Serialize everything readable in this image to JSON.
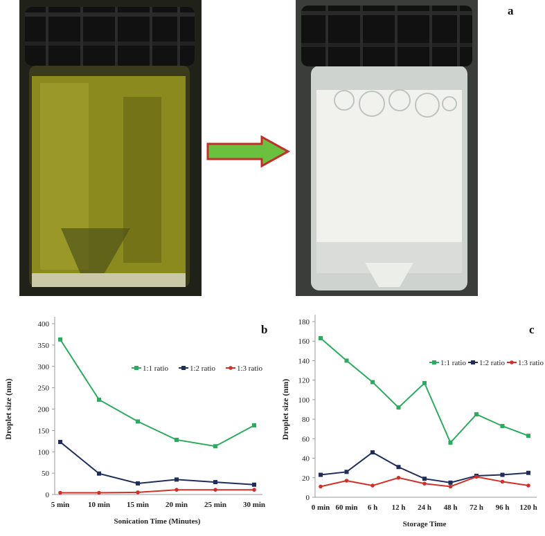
{
  "panel_labels": {
    "a": "a",
    "b": "b",
    "c": "c"
  },
  "photos": {
    "left": {
      "description_icon": "vial-oil-icon",
      "liquid_color": "#8a8a1e"
    },
    "right": {
      "description_icon": "vial-emulsion-icon",
      "liquid_color": "#f1f2ee"
    },
    "arrow": {
      "fill": "#6cc040",
      "stroke": "#c0302a"
    }
  },
  "colors": {
    "s1": "#2eaa5e",
    "s2": "#1f2d5a",
    "s3": "#d0302a"
  },
  "chart_data": [
    {
      "type": "line",
      "panel": "b",
      "categories": [
        "5 min",
        "10 min",
        "15 min",
        "20 min",
        "25 min",
        "30 min"
      ],
      "xlabel": "Sonication Time (Minutes)",
      "ylabel": "Droplet size (nm)",
      "ylim": [
        0,
        400
      ],
      "yticks": [
        0,
        50,
        100,
        150,
        200,
        250,
        300,
        350,
        400
      ],
      "legend_position": "upper-right",
      "series": [
        {
          "name": "1:1 ratio",
          "values": [
            363,
            222,
            171,
            128,
            113,
            162
          ]
        },
        {
          "name": "1:2 ratio",
          "values": [
            123,
            49,
            26,
            35,
            29,
            23
          ]
        },
        {
          "name": "1:3 ratio",
          "values": [
            4,
            4,
            5,
            11,
            11,
            11
          ]
        }
      ]
    },
    {
      "type": "line",
      "panel": "c",
      "categories": [
        "0 min",
        "60 min",
        "6 h",
        "12 h",
        "24 h",
        "48 h",
        "72 h",
        "96 h",
        "120 h"
      ],
      "xlabel": "Storage Time",
      "ylabel": "Droplet size (nm)",
      "ylim": [
        0,
        180
      ],
      "yticks": [
        0,
        20,
        40,
        60,
        80,
        100,
        120,
        140,
        160,
        180
      ],
      "legend_position": "upper-right",
      "series": [
        {
          "name": "1:1 ratio",
          "values": [
            163,
            140,
            118,
            92,
            117,
            56,
            85,
            73,
            63
          ]
        },
        {
          "name": "1:2 ratio",
          "values": [
            23,
            26,
            46,
            31,
            19,
            15,
            22,
            23,
            25
          ]
        },
        {
          "name": "1:3 ratio",
          "values": [
            11,
            17,
            12,
            20,
            14,
            11,
            21,
            16,
            12
          ]
        }
      ]
    }
  ]
}
